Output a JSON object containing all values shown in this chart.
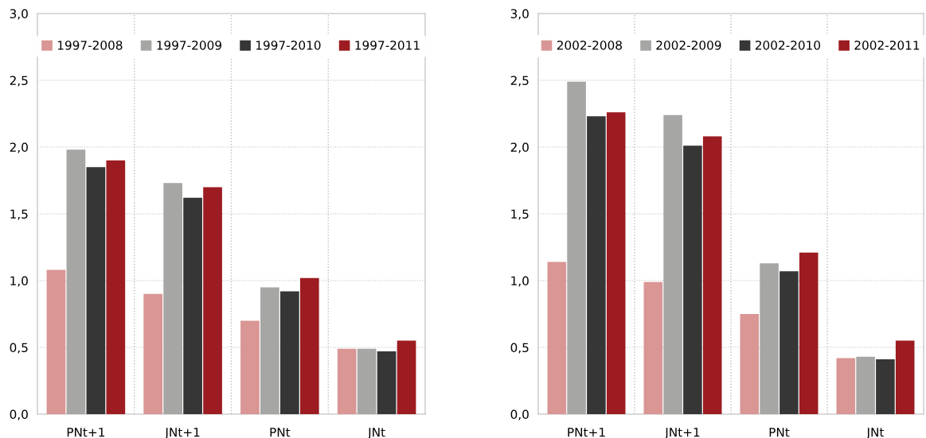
{
  "chart_data": [
    {
      "type": "bar",
      "categories": [
        "PNt+1",
        "JNt+1",
        "PNt",
        "JNt"
      ],
      "series": [
        {
          "name": "1997-2008",
          "color": "#d99694",
          "values": [
            1.08,
            0.9,
            0.7,
            0.49
          ]
        },
        {
          "name": "1997-2009",
          "color": "#a6a6a5",
          "values": [
            1.98,
            1.73,
            0.95,
            0.49
          ]
        },
        {
          "name": "1997-2010",
          "color": "#353635",
          "values": [
            1.85,
            1.62,
            0.92,
            0.47
          ]
        },
        {
          "name": "1997-2011",
          "color": "#9c1c21",
          "values": [
            1.9,
            1.7,
            1.02,
            0.55
          ]
        }
      ],
      "ylim": [
        0,
        3
      ],
      "yticks": [
        {
          "value": 0,
          "label": "0,0"
        },
        {
          "value": 0.5,
          "label": "0,5"
        },
        {
          "value": 1,
          "label": "1,0"
        },
        {
          "value": 1.5,
          "label": "1,5"
        },
        {
          "value": 2,
          "label": "2,0"
        },
        {
          "value": 2.5,
          "label": "2,5"
        },
        {
          "value": 3,
          "label": "3,0"
        }
      ],
      "grid": true,
      "legend": "top"
    },
    {
      "type": "bar",
      "categories": [
        "PNt+1",
        "JNt+1",
        "PNt",
        "JNt"
      ],
      "series": [
        {
          "name": "2002-2008",
          "color": "#d99694",
          "values": [
            1.14,
            0.99,
            0.75,
            0.42
          ]
        },
        {
          "name": "2002-2009",
          "color": "#a6a6a5",
          "values": [
            2.49,
            2.24,
            1.13,
            0.43
          ]
        },
        {
          "name": "2002-2010",
          "color": "#353635",
          "values": [
            2.23,
            2.01,
            1.07,
            0.41
          ]
        },
        {
          "name": "2002-2011",
          "color": "#9c1c21",
          "values": [
            2.26,
            2.08,
            1.21,
            0.55
          ]
        }
      ],
      "ylim": [
        0,
        3
      ],
      "yticks": [
        {
          "value": 0,
          "label": "0,0"
        },
        {
          "value": 0.5,
          "label": "0,5"
        },
        {
          "value": 1,
          "label": "1,0"
        },
        {
          "value": 1.5,
          "label": "1,5"
        },
        {
          "value": 2,
          "label": "2,0"
        },
        {
          "value": 2.5,
          "label": "2,5"
        },
        {
          "value": 3,
          "label": "3,0"
        }
      ],
      "grid": true,
      "legend": "top"
    }
  ]
}
